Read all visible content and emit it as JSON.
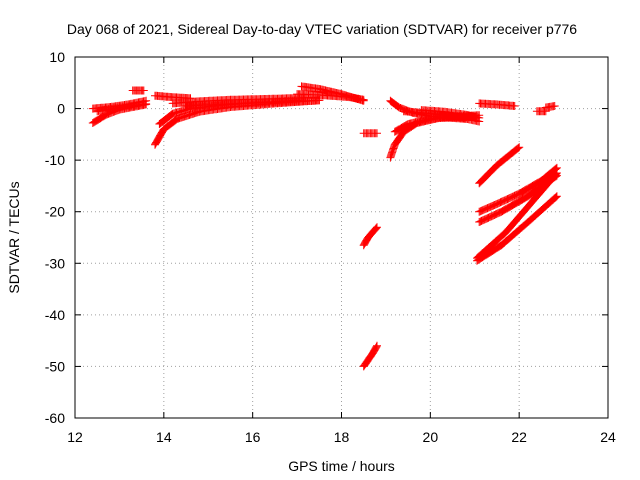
{
  "chart_data": {
    "type": "scatter",
    "title": "Day 068 of 2021, Sidereal Day-to-day VTEC variation (SDTVAR) for receiver p776",
    "xlabel": "GPS time / hours",
    "ylabel": "SDTVAR / TECUs",
    "xlim": [
      12,
      24
    ],
    "ylim": [
      -60,
      10
    ],
    "xticks": [
      12,
      14,
      16,
      18,
      20,
      22,
      24
    ],
    "yticks": [
      10,
      0,
      -10,
      -20,
      -30,
      -40,
      -50,
      -60
    ],
    "grid": true,
    "marker": "plus",
    "color": "#ff0000",
    "segments": [
      {
        "x": [
          12.4,
          12.8,
          13.2,
          13.6
        ],
        "y": [
          0.0,
          0.3,
          0.8,
          1.5
        ]
      },
      {
        "x": [
          12.4,
          12.7,
          13.0,
          13.6
        ],
        "y": [
          -2.8,
          -1.2,
          -0.2,
          0.8
        ]
      },
      {
        "x": [
          12.5,
          13.0,
          13.6
        ],
        "y": [
          -0.5,
          0.2,
          0.9
        ]
      },
      {
        "x": [
          13.3,
          13.55
        ],
        "y": [
          3.5,
          3.5
        ]
      },
      {
        "x": [
          13.8,
          14.2,
          14.6
        ],
        "y": [
          2.5,
          2.2,
          2.0
        ]
      },
      {
        "x": [
          13.8,
          14.0,
          14.3,
          14.8,
          15.5,
          16.5,
          17.5
        ],
        "y": [
          -7.0,
          -4.0,
          -2.0,
          -0.6,
          0.3,
          1.0,
          1.6
        ]
      },
      {
        "x": [
          13.9,
          14.2,
          14.6,
          15.2,
          16.0,
          17.0
        ],
        "y": [
          -3.0,
          -1.0,
          0.0,
          0.6,
          1.1,
          1.6
        ]
      },
      {
        "x": [
          14.2,
          14.8,
          15.5,
          16.5,
          17.2
        ],
        "y": [
          1.0,
          1.4,
          1.7,
          1.9,
          2.1
        ]
      },
      {
        "x": [
          14.5,
          15.5,
          16.5,
          17.5
        ],
        "y": [
          0.5,
          0.9,
          1.2,
          1.6
        ]
      },
      {
        "x": [
          17.1,
          17.5,
          18.0,
          18.5
        ],
        "y": [
          4.3,
          3.8,
          2.8,
          1.5
        ]
      },
      {
        "x": [
          17.0,
          17.6,
          18.2,
          18.5
        ],
        "y": [
          2.8,
          2.6,
          2.2,
          1.7
        ]
      },
      {
        "x": [
          18.5,
          18.8
        ],
        "y": [
          -4.8,
          -4.8
        ]
      },
      {
        "x": [
          18.5,
          18.6,
          18.8
        ],
        "y": [
          -26.5,
          -25.0,
          -23.0
        ]
      },
      {
        "x": [
          18.5,
          18.7,
          18.8
        ],
        "y": [
          -50.0,
          -47.5,
          -46.0
        ]
      },
      {
        "x": [
          19.1,
          19.3,
          19.6,
          20.0,
          20.8
        ],
        "y": [
          1.5,
          0.2,
          -0.8,
          -1.5,
          -2.0
        ]
      },
      {
        "x": [
          19.1,
          19.2,
          19.4,
          19.7,
          20.2,
          21.0
        ],
        "y": [
          -9.5,
          -7.0,
          -4.5,
          -2.8,
          -1.8,
          -1.6
        ]
      },
      {
        "x": [
          19.2,
          19.5,
          20.0,
          20.6,
          21.1
        ],
        "y": [
          -4.5,
          -3.0,
          -2.0,
          -1.5,
          -1.3
        ]
      },
      {
        "x": [
          19.4,
          20.0,
          20.6,
          21.1
        ],
        "y": [
          -0.5,
          -1.0,
          -1.6,
          -2.5
        ]
      },
      {
        "x": [
          19.8,
          20.3,
          20.8,
          21.1
        ],
        "y": [
          -0.3,
          -0.6,
          -1.2,
          -1.8
        ]
      },
      {
        "x": [
          21.1,
          21.5,
          21.9
        ],
        "y": [
          1.0,
          0.8,
          0.5
        ]
      },
      {
        "x": [
          22.4,
          22.6
        ],
        "y": [
          -0.5,
          -0.5
        ]
      },
      {
        "x": [
          22.6,
          22.8
        ],
        "y": [
          0.2,
          0.5
        ]
      },
      {
        "x": [
          21.1,
          21.5,
          22.0
        ],
        "y": [
          -14.5,
          -11.0,
          -7.5
        ]
      },
      {
        "x": [
          21.1,
          21.5,
          22.0,
          22.5,
          22.85
        ],
        "y": [
          -20.0,
          -18.5,
          -16.5,
          -14.0,
          -11.5
        ]
      },
      {
        "x": [
          21.1,
          21.6,
          22.2,
          22.85
        ],
        "y": [
          -22.0,
          -20.0,
          -17.0,
          -13.0
        ]
      },
      {
        "x": [
          21.05,
          21.7,
          22.3,
          22.85
        ],
        "y": [
          -29.0,
          -24.0,
          -18.0,
          -12.5
        ]
      },
      {
        "x": [
          21.05,
          21.6,
          22.2,
          22.85
        ],
        "y": [
          -29.5,
          -26.5,
          -22.0,
          -17.0
        ]
      }
    ]
  }
}
